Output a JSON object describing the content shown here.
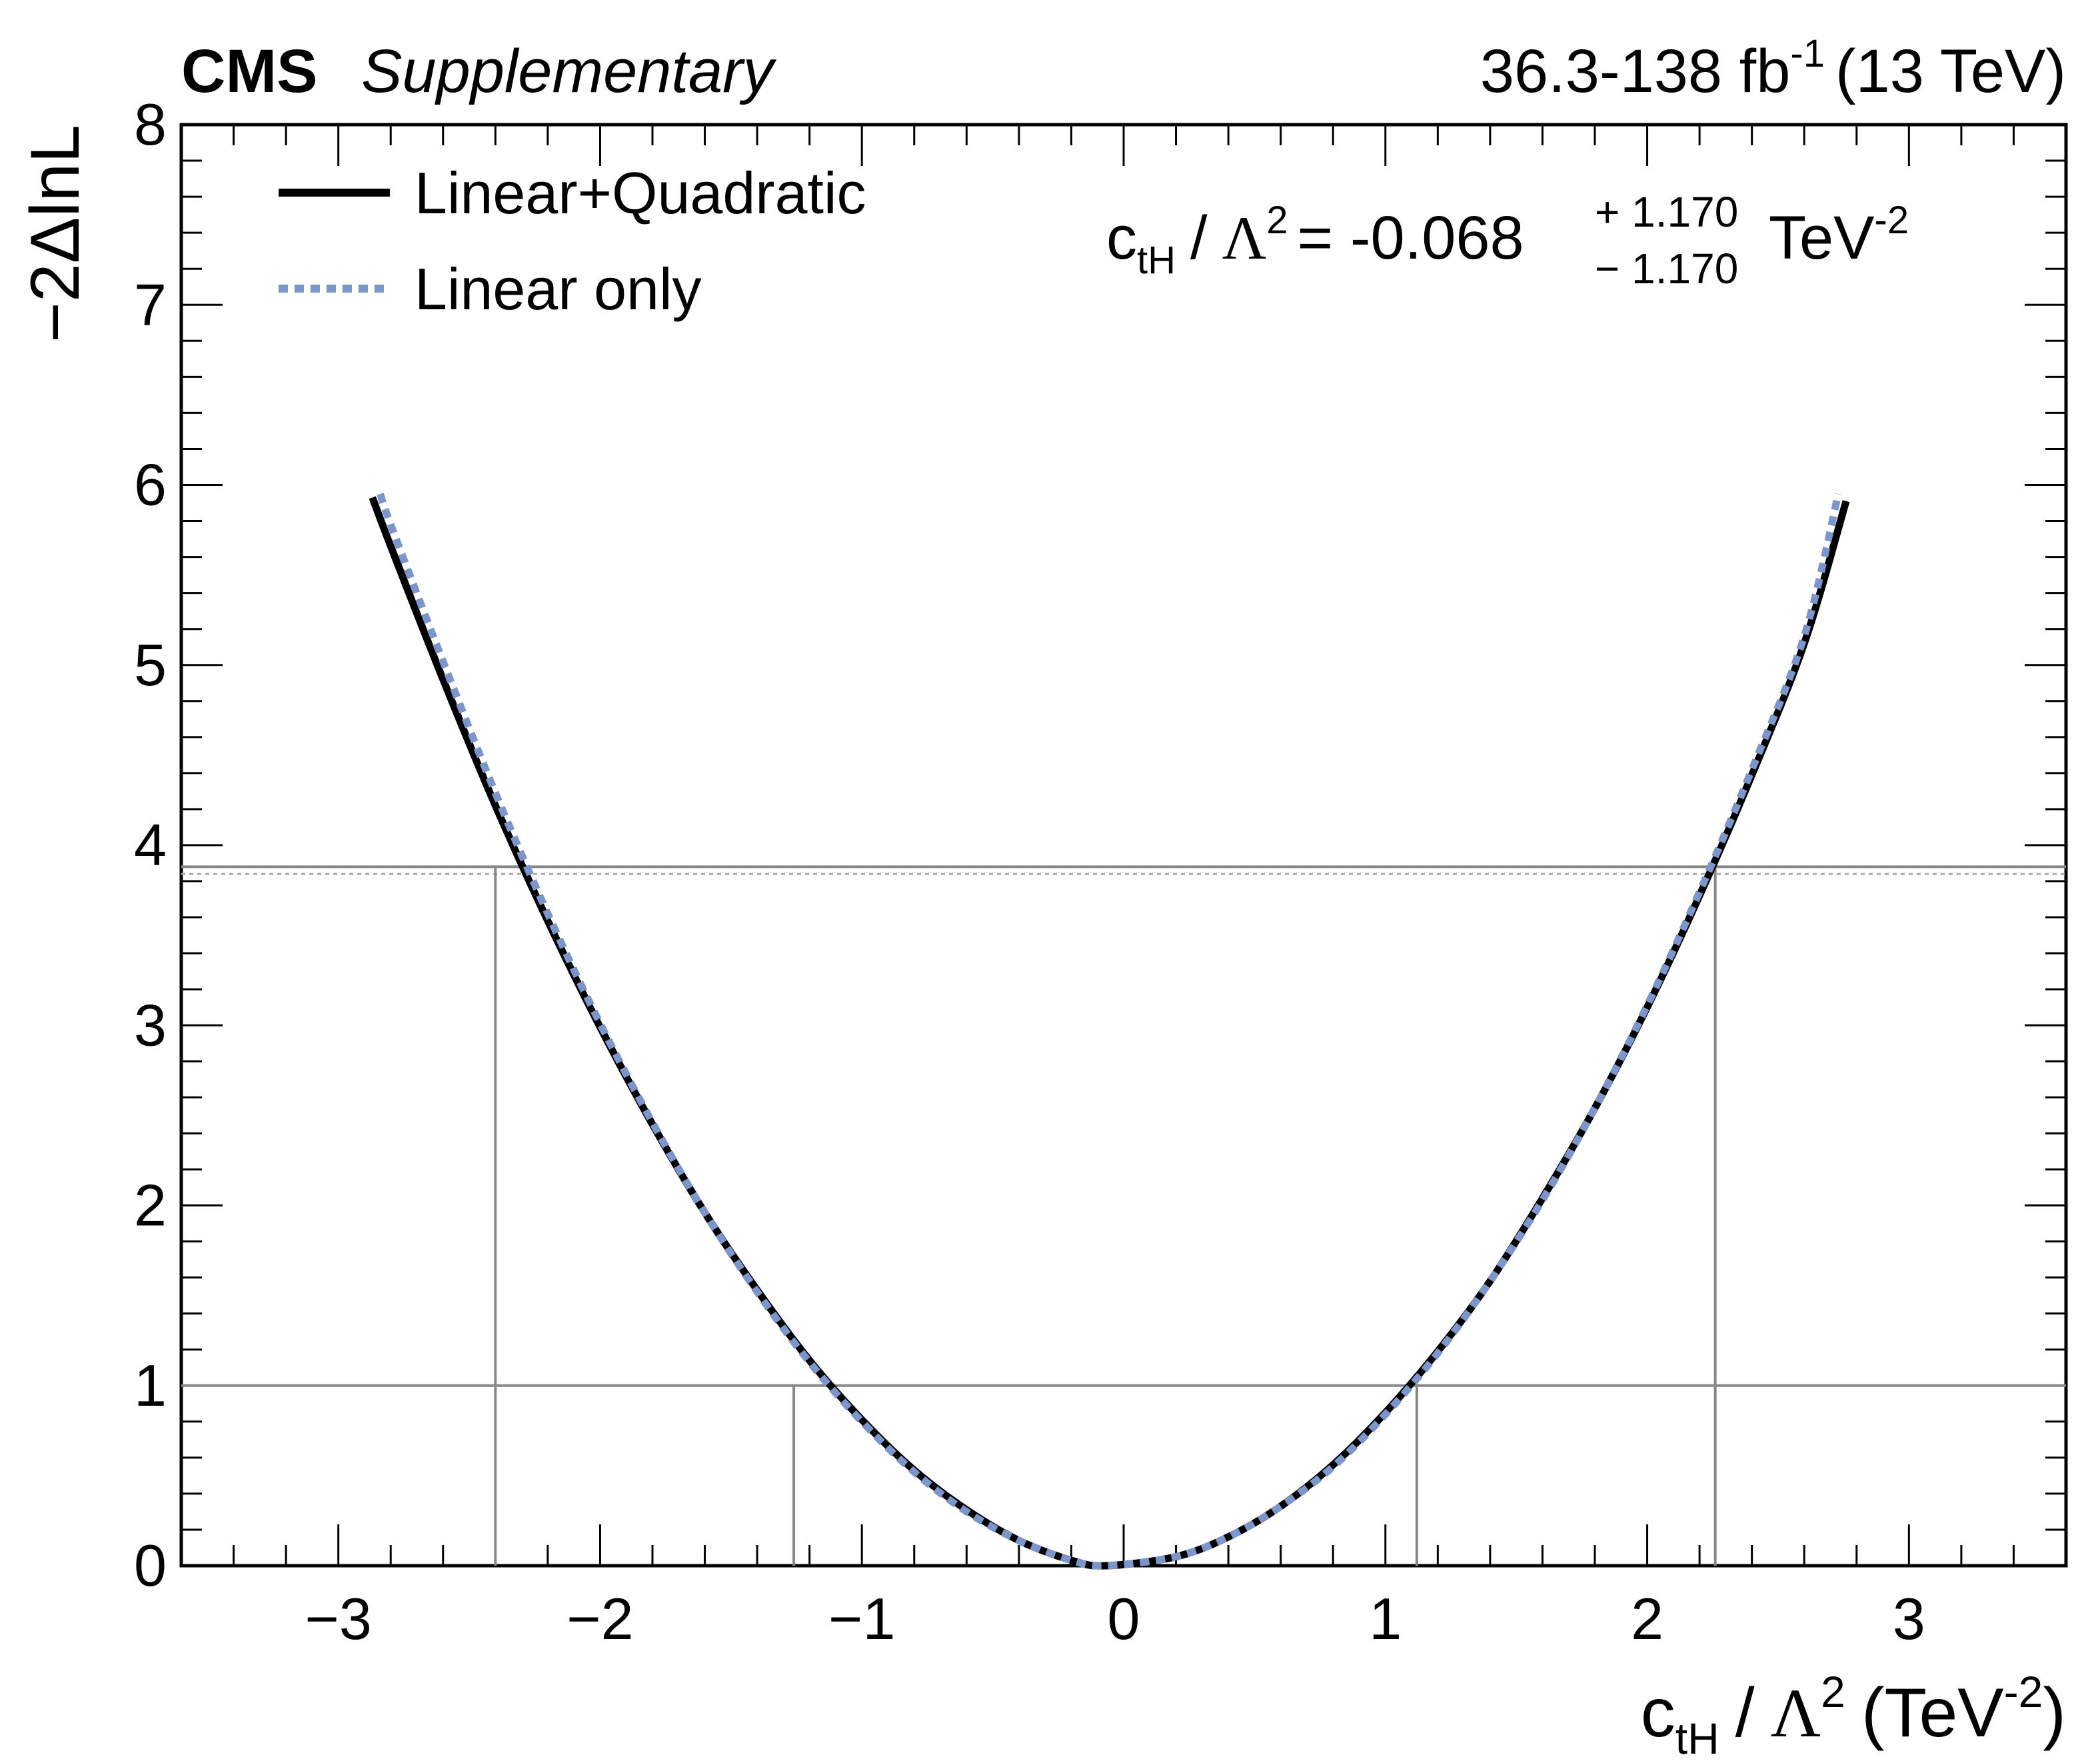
{
  "header": {
    "experiment": "CMS",
    "status": "Supplementary",
    "lumi_text": "36.3-138 fb",
    "lumi_exponent": "-1",
    "energy_text": "(13 TeV)"
  },
  "legend": {
    "position": "top-left",
    "entries": [
      {
        "label": "Linear+Quadratic",
        "style": "solid",
        "color": "#000000"
      },
      {
        "label": "Linear only",
        "style": "dotted",
        "color": "#7b96cc"
      }
    ]
  },
  "result": {
    "c": "c",
    "sub": "tH",
    "slash": "/",
    "lambda": "Λ",
    "pow": "2",
    "equals": "= -0.068",
    "plus": "+ 1.170",
    "minus": "− 1.170",
    "unit": "TeV",
    "unit_exp": "-2"
  },
  "axes": {
    "ylabel": "−2ΔlnL",
    "xlabel": {
      "c": "c",
      "sub": "tH",
      "slash": "/",
      "lambda": "Λ",
      "pow": "2",
      "unit_open": "(TeV",
      "unit_exp": "-2",
      "unit_close": ")"
    },
    "x_ticks": [
      "−3",
      "−2",
      "−1",
      "0",
      "1",
      "2",
      "3"
    ],
    "y_ticks": [
      "0",
      "1",
      "2",
      "3",
      "4",
      "5",
      "6",
      "7",
      "8"
    ]
  },
  "chart_data": {
    "type": "line",
    "xlim": [
      -3.6,
      3.6
    ],
    "ylim": [
      0,
      8
    ],
    "grid": false,
    "series": [
      {
        "name": "Linear+Quadratic",
        "color": "#000000",
        "style": "solid",
        "x": [
          -2.87,
          -2.8,
          -2.6,
          -2.4,
          -2.2,
          -2.0,
          -1.8,
          -1.6,
          -1.4,
          -1.2,
          -1.0,
          -0.8,
          -0.6,
          -0.4,
          -0.2,
          -0.068,
          0.2,
          0.4,
          0.6,
          0.8,
          1.0,
          1.2,
          1.4,
          1.6,
          1.8,
          2.0,
          2.2,
          2.4,
          2.6,
          2.76
        ],
        "y": [
          5.93,
          5.66,
          4.92,
          4.22,
          3.58,
          2.99,
          2.45,
          1.96,
          1.53,
          1.14,
          0.81,
          0.53,
          0.31,
          0.14,
          0.03,
          0.0,
          0.05,
          0.16,
          0.33,
          0.56,
          0.85,
          1.19,
          1.58,
          2.04,
          2.54,
          3.1,
          3.72,
          4.39,
          5.12,
          5.91
        ]
      },
      {
        "name": "Linear only",
        "color": "#7b96cc",
        "style": "dotted",
        "x": [
          -2.84,
          -2.8,
          -2.6,
          -2.4,
          -2.2,
          -2.0,
          -1.8,
          -1.6,
          -1.4,
          -1.2,
          -1.0,
          -0.8,
          -0.6,
          -0.4,
          -0.2,
          -0.068,
          0.2,
          0.4,
          0.6,
          0.8,
          1.0,
          1.2,
          1.4,
          1.6,
          1.8,
          2.0,
          2.2,
          2.4,
          2.6,
          2.73
        ],
        "y": [
          5.95,
          5.78,
          5.02,
          4.29,
          3.62,
          3.01,
          2.46,
          1.96,
          1.52,
          1.13,
          0.8,
          0.52,
          0.3,
          0.14,
          0.03,
          0.0,
          0.05,
          0.16,
          0.33,
          0.55,
          0.84,
          1.18,
          1.58,
          2.03,
          2.54,
          3.11,
          3.74,
          4.42,
          5.16,
          5.95
        ]
      }
    ],
    "reference_lines": {
      "horizontal": [
        {
          "y": 1.0,
          "style": "solid",
          "color": "#888888"
        },
        {
          "y": 3.88,
          "style": "solid",
          "color": "#888888"
        },
        {
          "y": 3.84,
          "style": "dotted",
          "color": "#aaaaaa"
        }
      ],
      "vertical": [
        {
          "x": -2.4,
          "y_top": 3.88
        },
        {
          "x": -1.26,
          "y_top": 1.0
        },
        {
          "x": 1.12,
          "y_top": 1.0
        },
        {
          "x": 2.26,
          "y_top": 3.88
        }
      ]
    }
  }
}
